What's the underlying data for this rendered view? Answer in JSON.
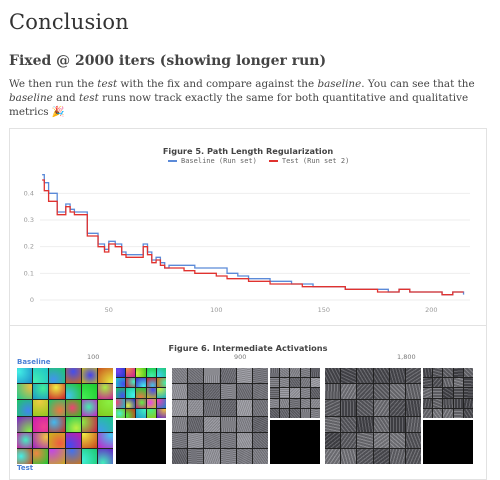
{
  "page": {
    "title": "Conclusion",
    "section_title": "Fixed @ 2000 iters (showing longer run)",
    "paragraph": {
      "p1": "We then run the ",
      "em1": "test",
      "p2": " with the fix and compare against the ",
      "em2": "baseline",
      "p3": ". You can see that the ",
      "em3": "baseline",
      "p4": " and ",
      "em4": "test",
      "p5": " runs now track exactly the same for both quantitative and qualitative metrics 🎉"
    }
  },
  "figure5": {
    "title": "Figure 5. Path Length Regularization",
    "colors": {
      "baseline": "#5b8ad8",
      "test": "#e0322f"
    }
  },
  "figure6": {
    "title": "Figure 6. Intermediate Activations",
    "steps": [
      "100",
      "900",
      "1,800"
    ],
    "run_labels": {
      "baseline": "Baseline",
      "test": "Test"
    }
  },
  "chart_data": {
    "type": "line",
    "title": "Figure 5. Path Length Regularization",
    "xlabel": "",
    "ylabel": "",
    "xlim": [
      18,
      218
    ],
    "ylim": [
      0,
      0.48
    ],
    "x_ticks": [
      "50",
      "100",
      "150",
      "200"
    ],
    "y_ticks": [
      "0",
      "0.1",
      "0.2",
      "0.3",
      "0.4"
    ],
    "legend_position": "top-center",
    "grid": true,
    "series": [
      {
        "name": "Baseline (Run set)",
        "x": [
          19,
          20,
          22,
          26,
          30,
          32,
          34,
          38,
          40,
          45,
          48,
          50,
          53,
          56,
          58,
          62,
          66,
          68,
          70,
          72,
          74,
          76,
          78,
          80,
          85,
          90,
          95,
          100,
          105,
          110,
          115,
          120,
          125,
          130,
          135,
          140,
          145,
          150,
          155,
          160,
          165,
          170,
          175,
          180,
          185,
          190,
          195,
          200,
          205,
          210,
          215
        ],
        "y": [
          0.47,
          0.44,
          0.4,
          0.33,
          0.36,
          0.34,
          0.33,
          0.33,
          0.25,
          0.21,
          0.19,
          0.22,
          0.21,
          0.18,
          0.17,
          0.17,
          0.21,
          0.18,
          0.15,
          0.16,
          0.14,
          0.12,
          0.13,
          0.13,
          0.13,
          0.12,
          0.12,
          0.12,
          0.1,
          0.09,
          0.08,
          0.08,
          0.07,
          0.07,
          0.06,
          0.06,
          0.05,
          0.05,
          0.05,
          0.04,
          0.04,
          0.04,
          0.04,
          0.03,
          0.04,
          0.03,
          0.03,
          0.03,
          0.02,
          0.03,
          0.02
        ]
      },
      {
        "name": "Test (Run set 2)",
        "x": [
          19,
          20,
          22,
          26,
          30,
          32,
          34,
          38,
          40,
          45,
          48,
          50,
          53,
          56,
          58,
          62,
          66,
          68,
          70,
          72,
          74,
          76,
          78,
          80,
          85,
          90,
          95,
          100,
          105,
          110,
          115,
          120,
          125,
          130,
          135,
          140,
          145,
          150,
          155,
          160,
          165,
          170,
          175,
          180,
          185,
          190,
          195,
          200,
          205,
          210,
          215
        ],
        "y": [
          0.45,
          0.41,
          0.37,
          0.32,
          0.35,
          0.33,
          0.32,
          0.32,
          0.24,
          0.2,
          0.18,
          0.21,
          0.2,
          0.17,
          0.16,
          0.16,
          0.2,
          0.17,
          0.14,
          0.15,
          0.13,
          0.12,
          0.12,
          0.12,
          0.11,
          0.1,
          0.1,
          0.09,
          0.08,
          0.08,
          0.07,
          0.07,
          0.06,
          0.06,
          0.06,
          0.05,
          0.05,
          0.05,
          0.05,
          0.04,
          0.04,
          0.04,
          0.03,
          0.03,
          0.04,
          0.03,
          0.03,
          0.03,
          0.02,
          0.03,
          0.03
        ]
      }
    ]
  }
}
